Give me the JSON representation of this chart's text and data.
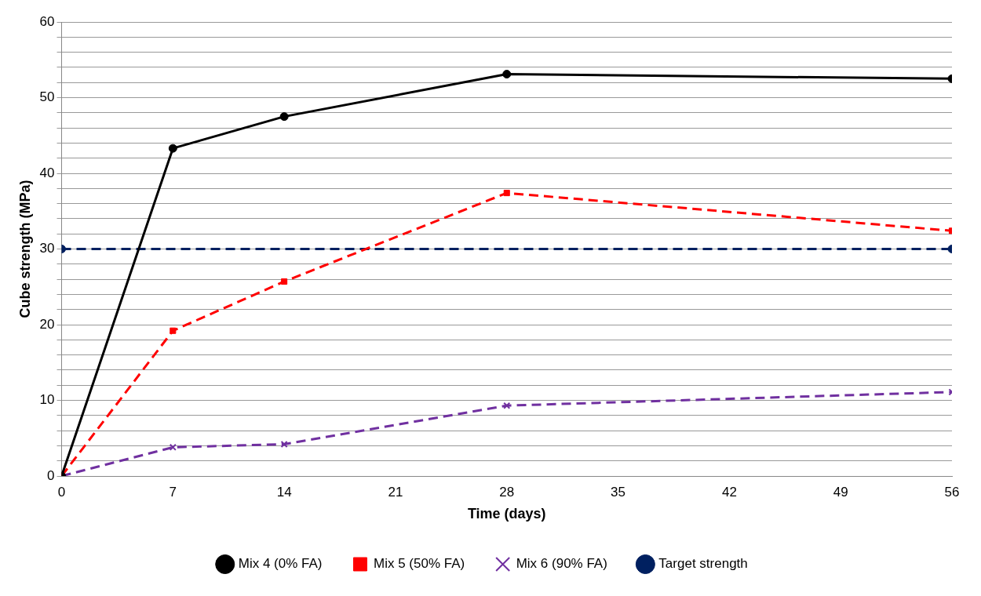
{
  "chart_data": {
    "type": "line",
    "xlabel": "Time (days)",
    "ylabel": "Cube strength (MPa)",
    "xlim": [
      0,
      56
    ],
    "xticks": [
      0,
      7,
      14,
      21,
      28,
      35,
      42,
      49,
      56
    ],
    "ylim": [
      0,
      60
    ],
    "yticks": [
      0,
      {
        "value": 2,
        "label": null
      },
      {
        "value": 4,
        "label": null
      },
      {
        "value": 6,
        "label": null
      },
      {
        "value": 8,
        "label": null
      },
      10,
      {
        "value": 12,
        "label": null
      },
      {
        "value": 14,
        "label": null
      },
      {
        "value": 16,
        "label": null
      },
      {
        "value": 18,
        "label": null
      },
      20,
      {
        "value": 22,
        "label": null
      },
      {
        "value": 24,
        "label": null
      },
      {
        "value": 26,
        "label": null
      },
      {
        "value": 28,
        "label": null
      },
      30,
      {
        "value": 32,
        "label": null
      },
      {
        "value": 34,
        "label": null
      },
      {
        "value": 36,
        "label": null
      },
      {
        "value": 38,
        "label": null
      },
      40,
      {
        "value": 42,
        "label": null
      },
      {
        "value": 44,
        "label": null
      },
      {
        "value": 46,
        "label": null
      },
      {
        "value": 48,
        "label": null
      },
      50,
      {
        "value": 52,
        "label": null
      },
      {
        "value": 54,
        "label": null
      },
      {
        "value": 56,
        "label": null
      },
      {
        "value": 58,
        "label": null
      },
      60
    ],
    "grid": "y",
    "legend": "bottom",
    "series": [
      {
        "name": "Mix 4 (0% FA)",
        "color": "#000000",
        "x": [
          0,
          7,
          14,
          28,
          56
        ],
        "values": [
          0,
          43.3,
          47.5,
          53.1,
          52.5
        ],
        "marker": "circle",
        "line_style": "solid"
      },
      {
        "name": "Mix 5 (50% FA)",
        "color": "#ff0000",
        "x": [
          0,
          7,
          14,
          28,
          56
        ],
        "values": [
          0,
          19.2,
          25.7,
          37.4,
          32.4
        ],
        "marker": "square",
        "line_style": "dashed"
      },
      {
        "name": "Mix 6 (90% FA)",
        "color": "#7030a0",
        "x": [
          0,
          7,
          14,
          28,
          56
        ],
        "values": [
          0,
          3.8,
          4.2,
          9.3,
          11.1
        ],
        "marker": "cross",
        "line_style": "dashed"
      },
      {
        "name": "Target strength",
        "color": "#002060",
        "x": [
          0,
          56
        ],
        "values": [
          30,
          30
        ],
        "marker": "circle",
        "line_style": "dashed"
      }
    ]
  }
}
